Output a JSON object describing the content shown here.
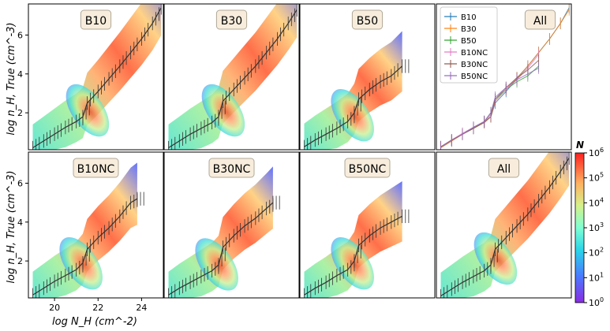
{
  "figure": {
    "y_axis_label": "log n_H, True (cm^-3)",
    "x_axis_label": "log N_H (cm^-2)",
    "colorbar_label": "N",
    "colorbar_ticks": [
      "10^0",
      "10^1",
      "10^2",
      "10^3",
      "10^4",
      "10^5",
      "10^6"
    ]
  },
  "chart_data": [
    {
      "type": "heatmap",
      "title": "B10",
      "xlim": [
        18.8,
        25.0
      ],
      "ylim": [
        0.1,
        7.6
      ],
      "x_ticks": [],
      "y_ticks": [
        2,
        4,
        6
      ],
      "trend": {
        "x": [
          19.0,
          19.5,
          20.0,
          20.5,
          21.0,
          21.3,
          21.5,
          22.0,
          22.5,
          23.0,
          23.5,
          24.0,
          24.5,
          24.9
        ],
        "y": [
          0.2,
          0.55,
          0.9,
          1.25,
          1.55,
          1.8,
          2.5,
          3.1,
          3.75,
          4.4,
          5.1,
          5.8,
          6.6,
          7.4
        ]
      }
    },
    {
      "type": "heatmap",
      "title": "B30",
      "xlim": [
        18.8,
        25.0
      ],
      "ylim": [
        0.1,
        7.6
      ],
      "x_ticks": [],
      "y_ticks": [],
      "trend": {
        "x": [
          19.0,
          19.5,
          20.0,
          20.5,
          21.0,
          21.3,
          21.5,
          22.0,
          22.5,
          23.0,
          23.5,
          24.0,
          24.5,
          24.9
        ],
        "y": [
          0.2,
          0.55,
          0.9,
          1.2,
          1.5,
          1.8,
          2.6,
          3.2,
          3.8,
          4.4,
          5.1,
          5.8,
          6.6,
          7.3
        ]
      }
    },
    {
      "type": "heatmap",
      "title": "B50",
      "xlim": [
        18.8,
        25.0
      ],
      "ylim": [
        0.1,
        7.6
      ],
      "x_ticks": [],
      "y_ticks": [],
      "trend": {
        "x": [
          19.0,
          19.5,
          20.0,
          20.5,
          21.0,
          21.3,
          21.5,
          22.0,
          22.5,
          23.0,
          23.5
        ],
        "y": [
          0.25,
          0.6,
          0.9,
          1.2,
          1.55,
          2.0,
          2.7,
          3.2,
          3.6,
          3.9,
          4.4
        ]
      }
    },
    {
      "type": "line",
      "title": "All",
      "xlim": [
        18.8,
        25.0
      ],
      "ylim": [
        0.1,
        7.6
      ],
      "x_ticks": [],
      "y_ticks": [],
      "legend_position": "top-left",
      "series": [
        {
          "name": "B10",
          "color": "#1f77b4",
          "x": [
            19.0,
            19.5,
            20.0,
            20.5,
            21.0,
            21.3,
            21.5,
            22.0,
            22.5,
            23.0,
            23.5,
            24.0,
            24.5,
            24.9
          ],
          "y": [
            0.2,
            0.55,
            0.9,
            1.25,
            1.55,
            1.8,
            2.5,
            3.1,
            3.75,
            4.4,
            5.1,
            5.8,
            6.6,
            7.4
          ]
        },
        {
          "name": "B30",
          "color": "#ff7f0e",
          "x": [
            19.0,
            19.5,
            20.0,
            20.5,
            21.0,
            21.3,
            21.5,
            22.0,
            22.5,
            23.0,
            23.5,
            24.0,
            24.5,
            24.9
          ],
          "y": [
            0.2,
            0.55,
            0.9,
            1.2,
            1.5,
            1.8,
            2.6,
            3.2,
            3.8,
            4.4,
            5.1,
            5.8,
            6.6,
            7.3
          ]
        },
        {
          "name": "B50",
          "color": "#2ca02c",
          "x": [
            19.0,
            19.5,
            20.0,
            20.5,
            21.0,
            21.3,
            21.5,
            22.0,
            22.5,
            23.0,
            23.5
          ],
          "y": [
            0.25,
            0.6,
            0.9,
            1.2,
            1.55,
            2.0,
            2.7,
            3.2,
            3.6,
            3.9,
            4.4
          ]
        },
        {
          "name": "B10NC",
          "color": "#e377c2",
          "x": [
            19.0,
            19.5,
            20.0,
            20.5,
            21.0,
            21.3,
            21.5,
            22.0,
            22.5,
            23.0,
            23.5
          ],
          "y": [
            0.25,
            0.6,
            0.95,
            1.25,
            1.55,
            1.9,
            2.6,
            3.2,
            3.7,
            4.3,
            5.0
          ]
        },
        {
          "name": "B30NC",
          "color": "#8c564b",
          "x": [
            19.0,
            19.5,
            20.0,
            20.5,
            21.0,
            21.3,
            21.5,
            22.0,
            22.5,
            23.0,
            23.5
          ],
          "y": [
            0.25,
            0.6,
            0.9,
            1.2,
            1.5,
            1.8,
            2.7,
            3.3,
            3.8,
            4.2,
            4.7
          ]
        },
        {
          "name": "B50NC",
          "color": "#9467bd",
          "x": [
            19.0,
            19.5,
            20.0,
            20.5,
            21.0,
            21.3,
            21.5,
            22.0,
            22.5,
            23.0,
            23.5
          ],
          "y": [
            0.25,
            0.6,
            0.9,
            1.25,
            1.55,
            2.0,
            2.8,
            3.3,
            3.7,
            4.0,
            4.3
          ]
        }
      ]
    },
    {
      "type": "heatmap",
      "title": "B10NC",
      "xlim": [
        18.8,
        25.0
      ],
      "ylim": [
        0.1,
        7.6
      ],
      "x_ticks": [
        20,
        22,
        24
      ],
      "y_ticks": [
        2,
        4,
        6
      ],
      "trend": {
        "x": [
          19.0,
          19.5,
          20.0,
          20.5,
          21.0,
          21.3,
          21.5,
          22.0,
          22.5,
          23.0,
          23.5,
          23.8
        ],
        "y": [
          0.25,
          0.6,
          0.95,
          1.25,
          1.55,
          1.9,
          2.6,
          3.2,
          3.7,
          4.3,
          5.0,
          5.2
        ]
      }
    },
    {
      "type": "heatmap",
      "title": "B30NC",
      "xlim": [
        18.8,
        25.0
      ],
      "ylim": [
        0.1,
        7.6
      ],
      "x_ticks": [],
      "y_ticks": [],
      "trend": {
        "x": [
          19.0,
          19.5,
          20.0,
          20.5,
          21.0,
          21.3,
          21.5,
          22.0,
          22.5,
          23.0,
          23.5,
          23.8
        ],
        "y": [
          0.25,
          0.6,
          0.9,
          1.2,
          1.5,
          1.8,
          2.7,
          3.3,
          3.8,
          4.2,
          4.7,
          5.0
        ]
      }
    },
    {
      "type": "heatmap",
      "title": "B50NC",
      "xlim": [
        18.8,
        25.0
      ],
      "ylim": [
        0.1,
        7.6
      ],
      "x_ticks": [],
      "y_ticks": [],
      "trend": {
        "x": [
          19.0,
          19.5,
          20.0,
          20.5,
          21.0,
          21.3,
          21.5,
          22.0,
          22.5,
          23.0,
          23.5
        ],
        "y": [
          0.25,
          0.6,
          0.9,
          1.25,
          1.55,
          2.0,
          2.8,
          3.3,
          3.7,
          4.0,
          4.3
        ]
      }
    },
    {
      "type": "heatmap",
      "title": "All",
      "xlim": [
        18.8,
        25.0
      ],
      "ylim": [
        0.1,
        7.6
      ],
      "x_ticks": [],
      "y_ticks": [],
      "trend": {
        "x": [
          19.0,
          19.5,
          20.0,
          20.5,
          21.0,
          21.3,
          21.5,
          22.0,
          22.5,
          23.0,
          23.5,
          24.0,
          24.5,
          24.9
        ],
        "y": [
          0.2,
          0.55,
          0.9,
          1.2,
          1.5,
          1.8,
          2.6,
          3.2,
          3.8,
          4.4,
          5.1,
          5.8,
          6.6,
          7.3
        ]
      }
    }
  ]
}
